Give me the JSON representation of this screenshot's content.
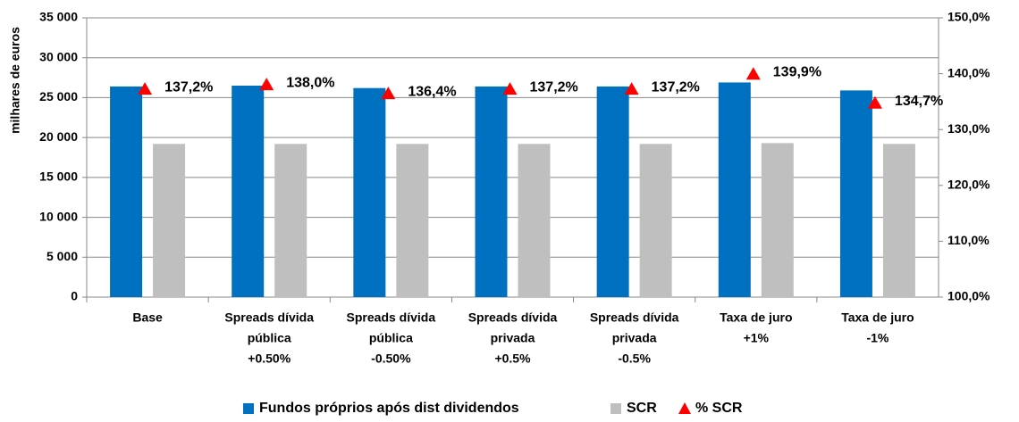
{
  "chart_data": {
    "type": "bar_scatter_combo",
    "y_label": "milhares de euros",
    "categories": [
      [
        "Base"
      ],
      [
        "Spreads dívida",
        "pública",
        "+0.50%"
      ],
      [
        "Spreads dívida",
        "pública",
        "-0.50%"
      ],
      [
        "Spreads dívida",
        "privada",
        "+0.5%"
      ],
      [
        "Spreads dívida",
        "privada",
        "-0.5%"
      ],
      [
        "Taxa de juro",
        "+1%"
      ],
      [
        "Taxa de juro",
        "-1%"
      ]
    ],
    "series": [
      {
        "name": "Fundos próprios após dist dividendos",
        "type": "bar",
        "color": "#0070c0",
        "values": [
          26400,
          26500,
          26200,
          26400,
          26400,
          26900,
          25900
        ]
      },
      {
        "name": "SCR",
        "type": "bar",
        "color": "#bfbfbf",
        "values": [
          19200,
          19200,
          19200,
          19200,
          19200,
          19300,
          19200
        ]
      },
      {
        "name": "% SCR",
        "type": "scatter",
        "axis": "y2",
        "marker": "triangle",
        "color": "#ff0000",
        "values": [
          137.2,
          138.0,
          136.4,
          137.2,
          137.2,
          139.9,
          134.7
        ],
        "value_labels": [
          "137,2%",
          "138,0%",
          "136,4%",
          "137,2%",
          "137,2%",
          "139,9%",
          "134,7%"
        ]
      }
    ],
    "ylim": [
      0,
      35000
    ],
    "yticks": [
      0,
      {
        "value": 5000,
        "label": "5 000"
      },
      {
        "value": 10000,
        "label": "10 000"
      },
      {
        "value": 15000,
        "label": "15 000"
      },
      {
        "value": 20000,
        "label": "20 000"
      },
      {
        "value": 25000,
        "label": "25 000"
      },
      {
        "value": 30000,
        "label": "30 000"
      },
      {
        "value": 35000,
        "label": "35 000"
      }
    ],
    "y2lim": [
      100,
      150
    ],
    "y2ticks": [
      {
        "value": 100,
        "label": "100,0%"
      },
      {
        "value": 110,
        "label": "110,0%"
      },
      {
        "value": 120,
        "label": "120,0%"
      },
      {
        "value": 130,
        "label": "130,0%"
      },
      {
        "value": 140,
        "label": "140,0%"
      },
      {
        "value": 150,
        "label": "150,0%"
      }
    ],
    "grid": true,
    "legend": "bottom"
  }
}
